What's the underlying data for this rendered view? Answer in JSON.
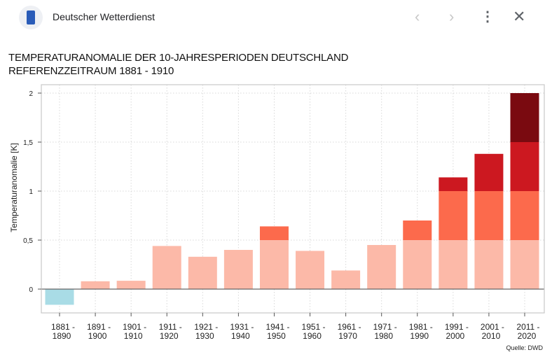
{
  "header": {
    "site_name": "Deutscher Wetterdienst",
    "logo_icon": "dwd-logo",
    "back_icon": "chevron-left-icon",
    "forward_icon": "chevron-right-icon",
    "menu_icon": "more-vert-icon",
    "close_icon": "close-icon"
  },
  "chart_data": {
    "type": "bar",
    "stacked_bands": true,
    "title": "TEMPERATURANOMALIE DER 10-JAHRESPERIODEN DEUTSCHLAND",
    "subtitle": "REFERENZZEITRAUM 1881 - 1910",
    "ylabel": "Temperaturanomalie [K]",
    "xlabel": "",
    "ylim": [
      -0.3,
      2.08
    ],
    "yticks": [
      0,
      0.5,
      1,
      1.5,
      2
    ],
    "ytick_labels": [
      "0",
      "0,5",
      "1",
      "1,5",
      "2"
    ],
    "grid": true,
    "categories": [
      [
        "1881 -",
        "1890"
      ],
      [
        "1891 -",
        "1900"
      ],
      [
        "1901 -",
        "1910"
      ],
      [
        "1911 -",
        "1920"
      ],
      [
        "1921 -",
        "1930"
      ],
      [
        "1931 -",
        "1940"
      ],
      [
        "1941 -",
        "1950"
      ],
      [
        "1951 -",
        "1960"
      ],
      [
        "1961 -",
        "1970"
      ],
      [
        "1971 -",
        "1980"
      ],
      [
        "1981 -",
        "1990"
      ],
      [
        "1991 -",
        "2000"
      ],
      [
        "2001 -",
        "2010"
      ],
      [
        "2011 -",
        "2020"
      ]
    ],
    "values": [
      -0.16,
      0.08,
      0.085,
      0.44,
      0.33,
      0.4,
      0.64,
      0.39,
      0.19,
      0.45,
      0.7,
      1.14,
      1.38,
      2.0
    ],
    "colors": {
      "negative": "#a9dce6",
      "band_0_0.5": "#fcb9a8",
      "band_0.5_1": "#fc6a4c",
      "band_1_1.5": "#cc1820",
      "band_1.5_2": "#7a0a10"
    },
    "source": "Quelle: DWD"
  }
}
